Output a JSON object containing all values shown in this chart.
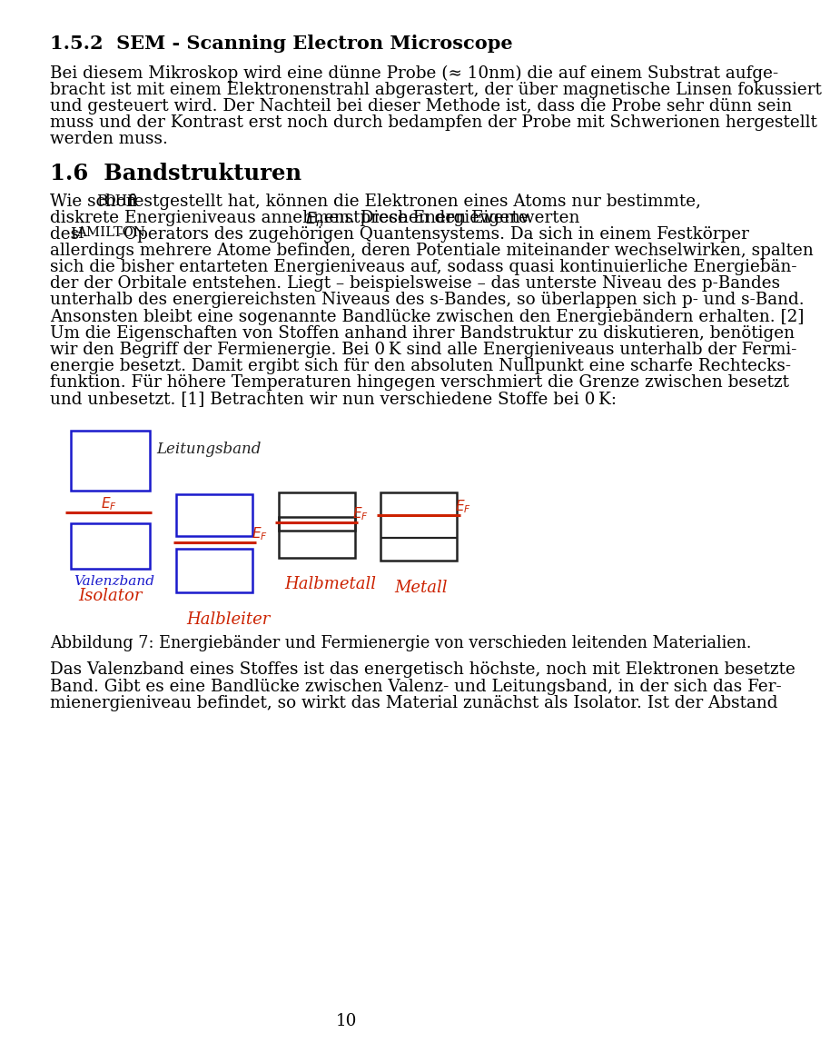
{
  "page_bg": "#ffffff",
  "text_color": "#000000",
  "red_color": "#cc2200",
  "blue_color": "#1a1acc",
  "dark_color": "#222222",
  "section_title_1": "1.5.2  SEM - Scanning Electron Microscope",
  "para1_lines": [
    "Bei diesem Mikroskop wird eine dünne Probe (≈ 10nm) die auf einem Substrat aufge-",
    "bracht ist mit einem Elektronenstrahl abgerastert, der über magnetische Linsen fokussiert",
    "und gesteuert wird. Der Nachteil bei dieser Methode ist, dass die Probe sehr dünn sein",
    "muss und der Kontrast erst noch durch bedampfen der Probe mit Schwerionen hergestellt",
    "werden muss."
  ],
  "section_title_2": "1.6  Bandstrukturen",
  "para2_lines": [
    "Wie schon BOHR festgestellt hat, können die Elektronen eines Atoms nur bestimmte,",
    "diskrete Energieniveaus annehmen. Diese Energiewerte $E_n$ enstprechen den Eigenwerten",
    "des HAMILTON-Operators des zugehörigen Quantensystems. Da sich in einem Festkörper",
    "allerdings mehrere Atome befinden, deren Potentiale miteinander wechselwirken, spalten",
    "sich die bisher entarteten Energieniveaus auf, sodass quasi kontinuierliche Energiebän-",
    "der der Orbitale entstehen. Liegt – beispielsweise – das unterste Niveau des p-Bandes",
    "unterhalb des energiereichsten Niveaus des s-Bandes, so überlappen sich p- und s-Band.",
    "Ansonsten bleibt eine sogenannte Bandlücke zwischen den Energiebändern erhalten. [2]",
    "Um die Eigenschaften von Stoffen anhand ihrer Bandstruktur zu diskutieren, benötigen",
    "wir den Begriff der Fermienergie. Bei 0 K sind alle Energieniveaus unterhalb der Fermi-",
    "energie besetzt. Damit ergibt sich für den absoluten Nullpunkt eine scharfe Rechtecks-",
    "funktion. Für höhere Temperaturen hingegen verschmiert die Grenze zwischen besetzt",
    "und unbesetzt. [1] Betrachten wir nun verschiedene Stoffe bei 0 K:"
  ],
  "caption": "Abbildung 7: Energiebänder und Fermienergie von verschieden leitenden Materialien.",
  "para3_lines": [
    "Das Valenzband eines Stoffes ist das energetisch höchste, noch mit Elektronen besetzte",
    "Band. Gibt es eine Bandlücke zwischen Valenz- und Leitungsband, in der sich das Fer-",
    "mienergieniveau befindet, so wirkt das Material zunächst als Isolator. Ist der Abstand"
  ],
  "page_number": "10"
}
